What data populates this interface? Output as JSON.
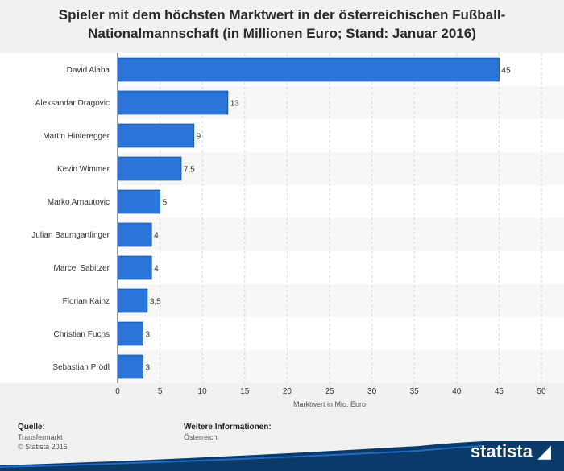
{
  "page": {
    "title": "Spieler mit dem höchsten Marktwert in der österreichischen Fußball-Nationalmannschaft (in Millionen Euro; Stand: Januar 2016)"
  },
  "chart_data": {
    "type": "bar",
    "orientation": "horizontal",
    "title": "Spieler mit dem höchsten Marktwert in der österreichischen Fußball-Nationalmannschaft (in Millionen Euro; Stand: Januar 2016)",
    "xlabel": "Marktwert in Mio. Euro",
    "ylabel": "",
    "categories": [
      "David Alaba",
      "Aleksandar Dragovic",
      "Martin Hinteregger",
      "Kevin Wimmer",
      "Marko Arnautovic",
      "Julian Baumgartlinger",
      "Marcel Sabitzer",
      "Florian Kainz",
      "Christian Fuchs",
      "Sebastian Prödl"
    ],
    "values": [
      45,
      13,
      9,
      7.5,
      5,
      4,
      4,
      3.5,
      3,
      3
    ],
    "value_labels": [
      "45",
      "13",
      "9",
      "7,5",
      "5",
      "4",
      "4",
      "3,5",
      "3",
      "3"
    ],
    "xlim": [
      0,
      50
    ],
    "ticks": [
      "0",
      "5",
      "10",
      "15",
      "20",
      "25",
      "30",
      "35",
      "40",
      "45",
      "50"
    ],
    "grid": true,
    "bar_color": "#2b74d8"
  },
  "footer": {
    "source_heading": "Quelle:",
    "source_line1": "Transfermarkt",
    "source_line2": "© Statista 2016",
    "info_heading": "Weitere Informationen:",
    "info_line1": "Österreich"
  },
  "brand": {
    "name": "statista",
    "color": "#0a3a68"
  }
}
